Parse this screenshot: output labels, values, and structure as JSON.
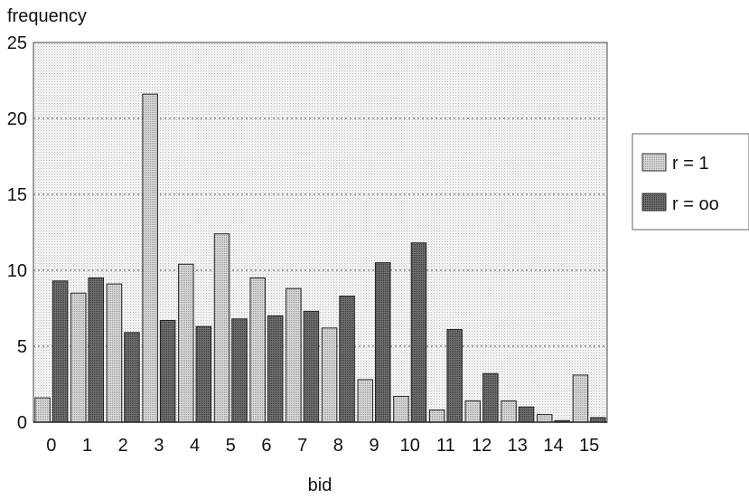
{
  "chart_data": {
    "type": "bar",
    "title": "",
    "xlabel": "bid",
    "ylabel": "frequency",
    "ylim": [
      0,
      25
    ],
    "yticks": [
      0,
      5,
      10,
      15,
      20,
      25
    ],
    "grid": "horizontal dotted",
    "legend_position": "right",
    "categories": [
      "0",
      "1",
      "2",
      "3",
      "4",
      "5",
      "6",
      "7",
      "8",
      "9",
      "10",
      "11",
      "12",
      "13",
      "14",
      "15"
    ],
    "series": [
      {
        "name": "r = 1",
        "color": "#c8c8c8",
        "values": [
          1.6,
          8.5,
          9.1,
          21.6,
          10.4,
          12.4,
          9.5,
          8.8,
          6.2,
          2.8,
          1.7,
          0.8,
          1.4,
          1.4,
          0.5,
          3.1
        ]
      },
      {
        "name": "r = oo",
        "color": "#666666",
        "values": [
          9.3,
          9.5,
          5.9,
          6.7,
          6.3,
          6.8,
          7.0,
          7.3,
          8.3,
          10.5,
          11.8,
          6.1,
          3.2,
          1.0,
          0.1,
          0.3
        ]
      }
    ]
  }
}
